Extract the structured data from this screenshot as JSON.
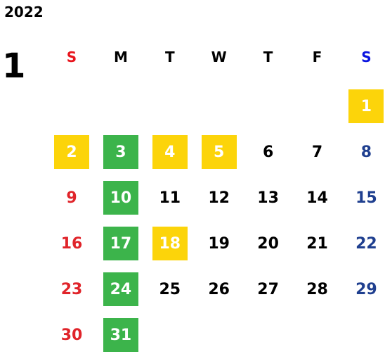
{
  "year": "2022",
  "month": "1",
  "weekdays": [
    {
      "label": "S",
      "color": "#e8141c",
      "day_color": "#e0242a"
    },
    {
      "label": "M",
      "color": "#000000",
      "day_color": "#000000"
    },
    {
      "label": "T",
      "color": "#000000",
      "day_color": "#000000"
    },
    {
      "label": "W",
      "color": "#000000",
      "day_color": "#000000"
    },
    {
      "label": "T",
      "color": "#000000",
      "day_color": "#000000"
    },
    {
      "label": "F",
      "color": "#000000",
      "day_color": "#000000"
    },
    {
      "label": "S",
      "color": "#0a14e0",
      "day_color": "#1f3f8f"
    }
  ],
  "highlight_text_color": "#ffffff",
  "weeks": [
    [
      null,
      null,
      null,
      null,
      null,
      null,
      {
        "day": 1,
        "fill": "#fcd40a"
      }
    ],
    [
      {
        "day": 2,
        "fill": "#fcd40a"
      },
      {
        "day": 3,
        "fill": "#3cb44b"
      },
      {
        "day": 4,
        "fill": "#fcd40a"
      },
      {
        "day": 5,
        "fill": "#fcd40a"
      },
      6,
      7,
      8
    ],
    [
      9,
      {
        "day": 10,
        "fill": "#3cb44b"
      },
      11,
      12,
      13,
      14,
      15
    ],
    [
      16,
      {
        "day": 17,
        "fill": "#3cb44b"
      },
      {
        "day": 18,
        "fill": "#fcd40a"
      },
      19,
      20,
      21,
      22
    ],
    [
      23,
      {
        "day": 24,
        "fill": "#3cb44b"
      },
      25,
      26,
      27,
      28,
      29
    ],
    [
      30,
      {
        "day": 31,
        "fill": "#3cb44b"
      },
      null,
      null,
      null,
      null,
      null
    ]
  ]
}
